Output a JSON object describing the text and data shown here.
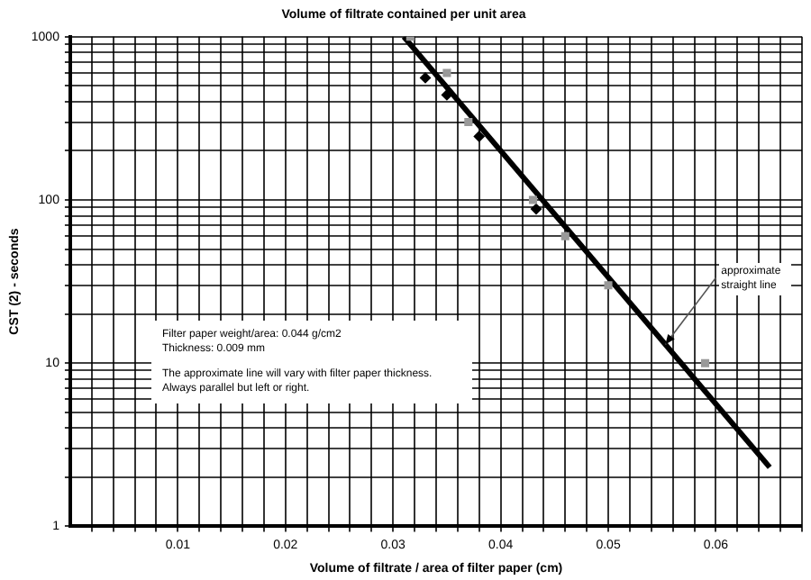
{
  "chart_data": {
    "type": "scatter",
    "title": "Volume of filtrate contained per unit area",
    "xlabel": "Volume of filtrate / area of filter paper (cm)",
    "ylabel": "CST (2) - seconds",
    "log": "y",
    "grid": true,
    "legend": false,
    "xlim": [
      0,
      0.068
    ],
    "ylim": [
      1,
      1000
    ],
    "xticks": [
      {
        "value": 0.002,
        "label": null
      },
      {
        "value": 0.004,
        "label": null
      },
      {
        "value": 0.006,
        "label": null
      },
      {
        "value": 0.008,
        "label": null
      },
      0.01,
      {
        "value": 0.012,
        "label": null
      },
      {
        "value": 0.014,
        "label": null
      },
      {
        "value": 0.016,
        "label": null
      },
      {
        "value": 0.018,
        "label": null
      },
      0.02,
      {
        "value": 0.022,
        "label": null
      },
      {
        "value": 0.024,
        "label": null
      },
      {
        "value": 0.026,
        "label": null
      },
      {
        "value": 0.028,
        "label": null
      },
      0.03,
      {
        "value": 0.032,
        "label": null
      },
      {
        "value": 0.034,
        "label": null
      },
      {
        "value": 0.036,
        "label": null
      },
      {
        "value": 0.038,
        "label": null
      },
      0.04,
      {
        "value": 0.042,
        "label": null
      },
      {
        "value": 0.044,
        "label": null
      },
      {
        "value": 0.046,
        "label": null
      },
      {
        "value": 0.048,
        "label": null
      },
      0.05,
      {
        "value": 0.052,
        "label": null
      },
      {
        "value": 0.054,
        "label": null
      },
      {
        "value": 0.056,
        "label": null
      },
      {
        "value": 0.058,
        "label": null
      },
      0.06,
      {
        "value": 0.062,
        "label": null
      },
      {
        "value": 0.064,
        "label": null
      },
      {
        "value": 0.066,
        "label": null
      },
      {
        "value": 0.068,
        "label": null
      }
    ],
    "yticks": [
      1,
      {
        "value": 2,
        "label": null
      },
      {
        "value": 3,
        "label": null
      },
      {
        "value": 4,
        "label": null
      },
      {
        "value": 5,
        "label": null
      },
      {
        "value": 6,
        "label": null
      },
      {
        "value": 7,
        "label": null
      },
      {
        "value": 8,
        "label": null
      },
      {
        "value": 9,
        "label": null
      },
      10,
      {
        "value": 20,
        "label": null
      },
      {
        "value": 30,
        "label": null
      },
      {
        "value": 40,
        "label": null
      },
      {
        "value": 50,
        "label": null
      },
      {
        "value": 60,
        "label": null
      },
      {
        "value": 70,
        "label": null
      },
      {
        "value": 80,
        "label": null
      },
      {
        "value": 90,
        "label": null
      },
      100,
      {
        "value": 200,
        "label": null
      },
      {
        "value": 300,
        "label": null
      },
      {
        "value": 400,
        "label": null
      },
      {
        "value": 500,
        "label": null
      },
      {
        "value": 600,
        "label": null
      },
      {
        "value": 700,
        "label": null
      },
      {
        "value": 800,
        "label": null
      },
      {
        "value": 900,
        "label": null
      },
      1000
    ],
    "series": [
      {
        "color": "#999999",
        "marker": "square",
        "x": [
          0.0316,
          0.035,
          0.037,
          0.043,
          0.046,
          0.05,
          0.059
        ],
        "values": [
          1000,
          600,
          300,
          100,
          60,
          30,
          10
        ]
      },
      {
        "color": "#000000",
        "marker": "diamond",
        "x": [
          0.033,
          0.035,
          0.038,
          0.0433
        ],
        "values": [
          560,
          440,
          245,
          88
        ]
      },
      {
        "type": "line",
        "color": "#000000",
        "marker": "none",
        "line_style": "solid",
        "x": [
          0.031,
          0.065
        ],
        "values": [
          1000,
          2.3
        ]
      }
    ],
    "annotations": [
      "Filter paper weight/area: 0.044 g/cm2",
      "Thickness: 0.009 mm",
      "The approximate line will vary with filter paper thickness.",
      "Always parallel but left or right.",
      {
        "text": "approximate straight line",
        "x": 0.0553,
        "y": 13
      }
    ]
  }
}
